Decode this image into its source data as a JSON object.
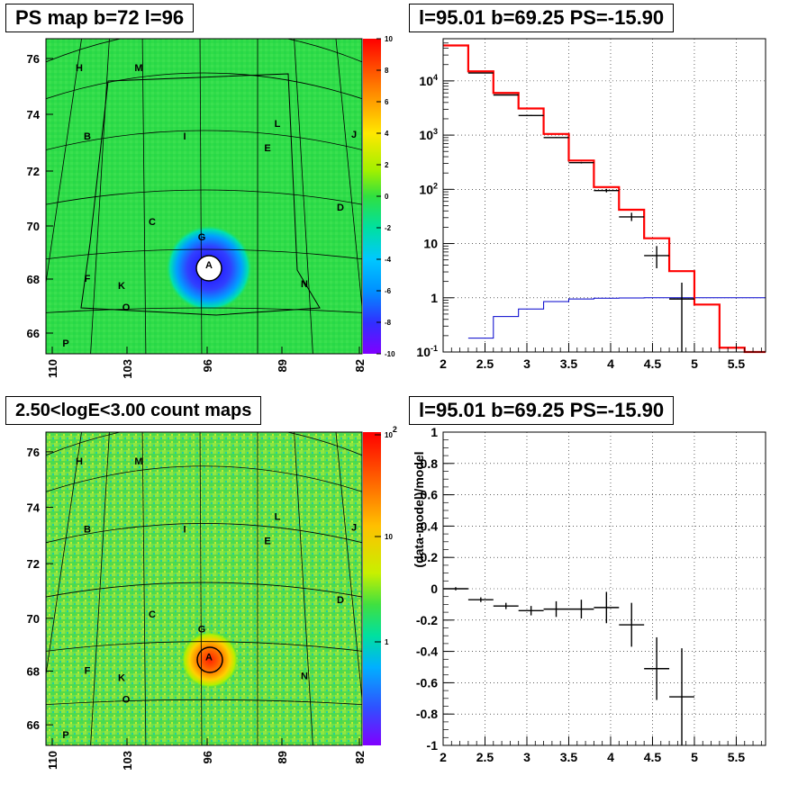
{
  "chart_data": [
    {
      "type": "heatmap",
      "title": "PS map b=72 l=96",
      "x_ticks": [
        "110",
        "103",
        "96",
        "89",
        "82"
      ],
      "y_ticks": [
        "66",
        "68",
        "70",
        "72",
        "74",
        "76"
      ],
      "colorbar_ticks": [
        "10",
        "8",
        "6",
        "4",
        "2",
        "0",
        "-2",
        "-4",
        "-6",
        "-8",
        "-10"
      ],
      "colorbar_range": [
        -10,
        10
      ],
      "source_labels": [
        "H",
        "M",
        "B",
        "I",
        "L",
        "J",
        "E",
        "C",
        "D",
        "G",
        "A",
        "F",
        "K",
        "N",
        "O",
        "P"
      ]
    },
    {
      "type": "line",
      "title": "l=95.01 b=69.25 PS=-15.90",
      "log_y": true,
      "xlim": [
        2,
        5.85
      ],
      "ylim": [
        0.1,
        60000
      ],
      "x_ticks": [
        "2",
        "2.5",
        "3",
        "3.5",
        "4",
        "4.5",
        "5",
        "5.5"
      ],
      "y_ticks": [
        "10^-1",
        "1",
        "10",
        "10^2",
        "10^3",
        "10^4"
      ],
      "model_step": {
        "color": "#ff0000",
        "edges": [
          2.0,
          2.3,
          2.6,
          2.9,
          3.2,
          3.5,
          3.8,
          4.1,
          4.4,
          4.7,
          5.0,
          5.3,
          5.6,
          5.85
        ],
        "values": [
          45000,
          15000,
          6000,
          3100,
          1050,
          340,
          110,
          42,
          12.5,
          3.1,
          0.75,
          0.12,
          0.1
        ]
      },
      "background_step": {
        "color": "#0000cc",
        "edges": [
          2.3,
          2.6,
          2.9,
          3.2,
          3.5,
          3.8,
          4.1,
          4.4,
          4.7,
          5.0,
          5.85
        ],
        "values": [
          0.18,
          0.45,
          0.62,
          0.85,
          0.95,
          0.98,
          0.99,
          1.0,
          1.0,
          1.0
        ]
      },
      "data_points": [
        {
          "x": 2.45,
          "y": 14000,
          "xerr": 0.15,
          "ylo": 13800,
          "yhi": 14200
        },
        {
          "x": 2.75,
          "y": 5500,
          "xerr": 0.15,
          "ylo": 5400,
          "yhi": 5600
        },
        {
          "x": 3.05,
          "y": 2300,
          "xerr": 0.15,
          "ylo": 2250,
          "yhi": 2350
        },
        {
          "x": 3.35,
          "y": 900,
          "xerr": 0.15,
          "ylo": 880,
          "yhi": 920
        },
        {
          "x": 3.65,
          "y": 310,
          "xerr": 0.15,
          "ylo": 300,
          "yhi": 320
        },
        {
          "x": 3.95,
          "y": 95,
          "xerr": 0.15,
          "ylo": 88,
          "yhi": 102
        },
        {
          "x": 4.25,
          "y": 31,
          "xerr": 0.15,
          "ylo": 26,
          "yhi": 37
        },
        {
          "x": 4.55,
          "y": 6,
          "xerr": 0.15,
          "ylo": 3.5,
          "yhi": 9
        },
        {
          "x": 4.85,
          "y": 0.95,
          "xerr": 0.15,
          "ylo": 0.1,
          "yhi": 1.9
        }
      ]
    },
    {
      "type": "heatmap",
      "title": "2.50<logE<3.00 count maps",
      "x_ticks": [
        "110",
        "103",
        "96",
        "89",
        "82"
      ],
      "y_ticks": [
        "66",
        "68",
        "70",
        "72",
        "74",
        "76"
      ],
      "colorbar_ticks": [
        "10^2",
        "10",
        "1"
      ],
      "colorbar_scale": "log",
      "source_labels": [
        "H",
        "M",
        "B",
        "I",
        "L",
        "J",
        "E",
        "C",
        "D",
        "G",
        "A",
        "F",
        "K",
        "N",
        "O",
        "P"
      ]
    },
    {
      "type": "scatter",
      "title": "l=95.01 b=69.25 PS=-15.90",
      "ylabel": "(data-model)/model",
      "xlim": [
        2,
        5.85
      ],
      "ylim": [
        -1,
        1
      ],
      "x_ticks": [
        "2",
        "2.5",
        "3",
        "3.5",
        "4",
        "4.5",
        "5",
        "5.5"
      ],
      "y_ticks": [
        "1",
        "0.8",
        "0.6",
        "0.4",
        "0.2",
        "0",
        "-0.2",
        "-0.4",
        "-0.6",
        "-0.8",
        "-1"
      ],
      "points": [
        {
          "x": 2.15,
          "y": 0.0,
          "xerr": 0.15,
          "yerr": 0.01
        },
        {
          "x": 2.45,
          "y": -0.07,
          "xerr": 0.15,
          "yerr": 0.015
        },
        {
          "x": 2.75,
          "y": -0.11,
          "xerr": 0.15,
          "yerr": 0.02
        },
        {
          "x": 3.05,
          "y": -0.14,
          "xerr": 0.15,
          "yerr": 0.03
        },
        {
          "x": 3.35,
          "y": -0.13,
          "xerr": 0.15,
          "yerr": 0.05
        },
        {
          "x": 3.65,
          "y": -0.13,
          "xerr": 0.15,
          "yerr": 0.06
        },
        {
          "x": 3.95,
          "y": -0.12,
          "xerr": 0.15,
          "yerr": 0.1
        },
        {
          "x": 4.25,
          "y": -0.23,
          "xerr": 0.15,
          "yerr": 0.14
        },
        {
          "x": 4.55,
          "y": -0.51,
          "xerr": 0.15,
          "yerr": 0.2
        },
        {
          "x": 4.85,
          "y": -0.69,
          "xerr": 0.15,
          "yerr": 0.31
        }
      ]
    }
  ]
}
